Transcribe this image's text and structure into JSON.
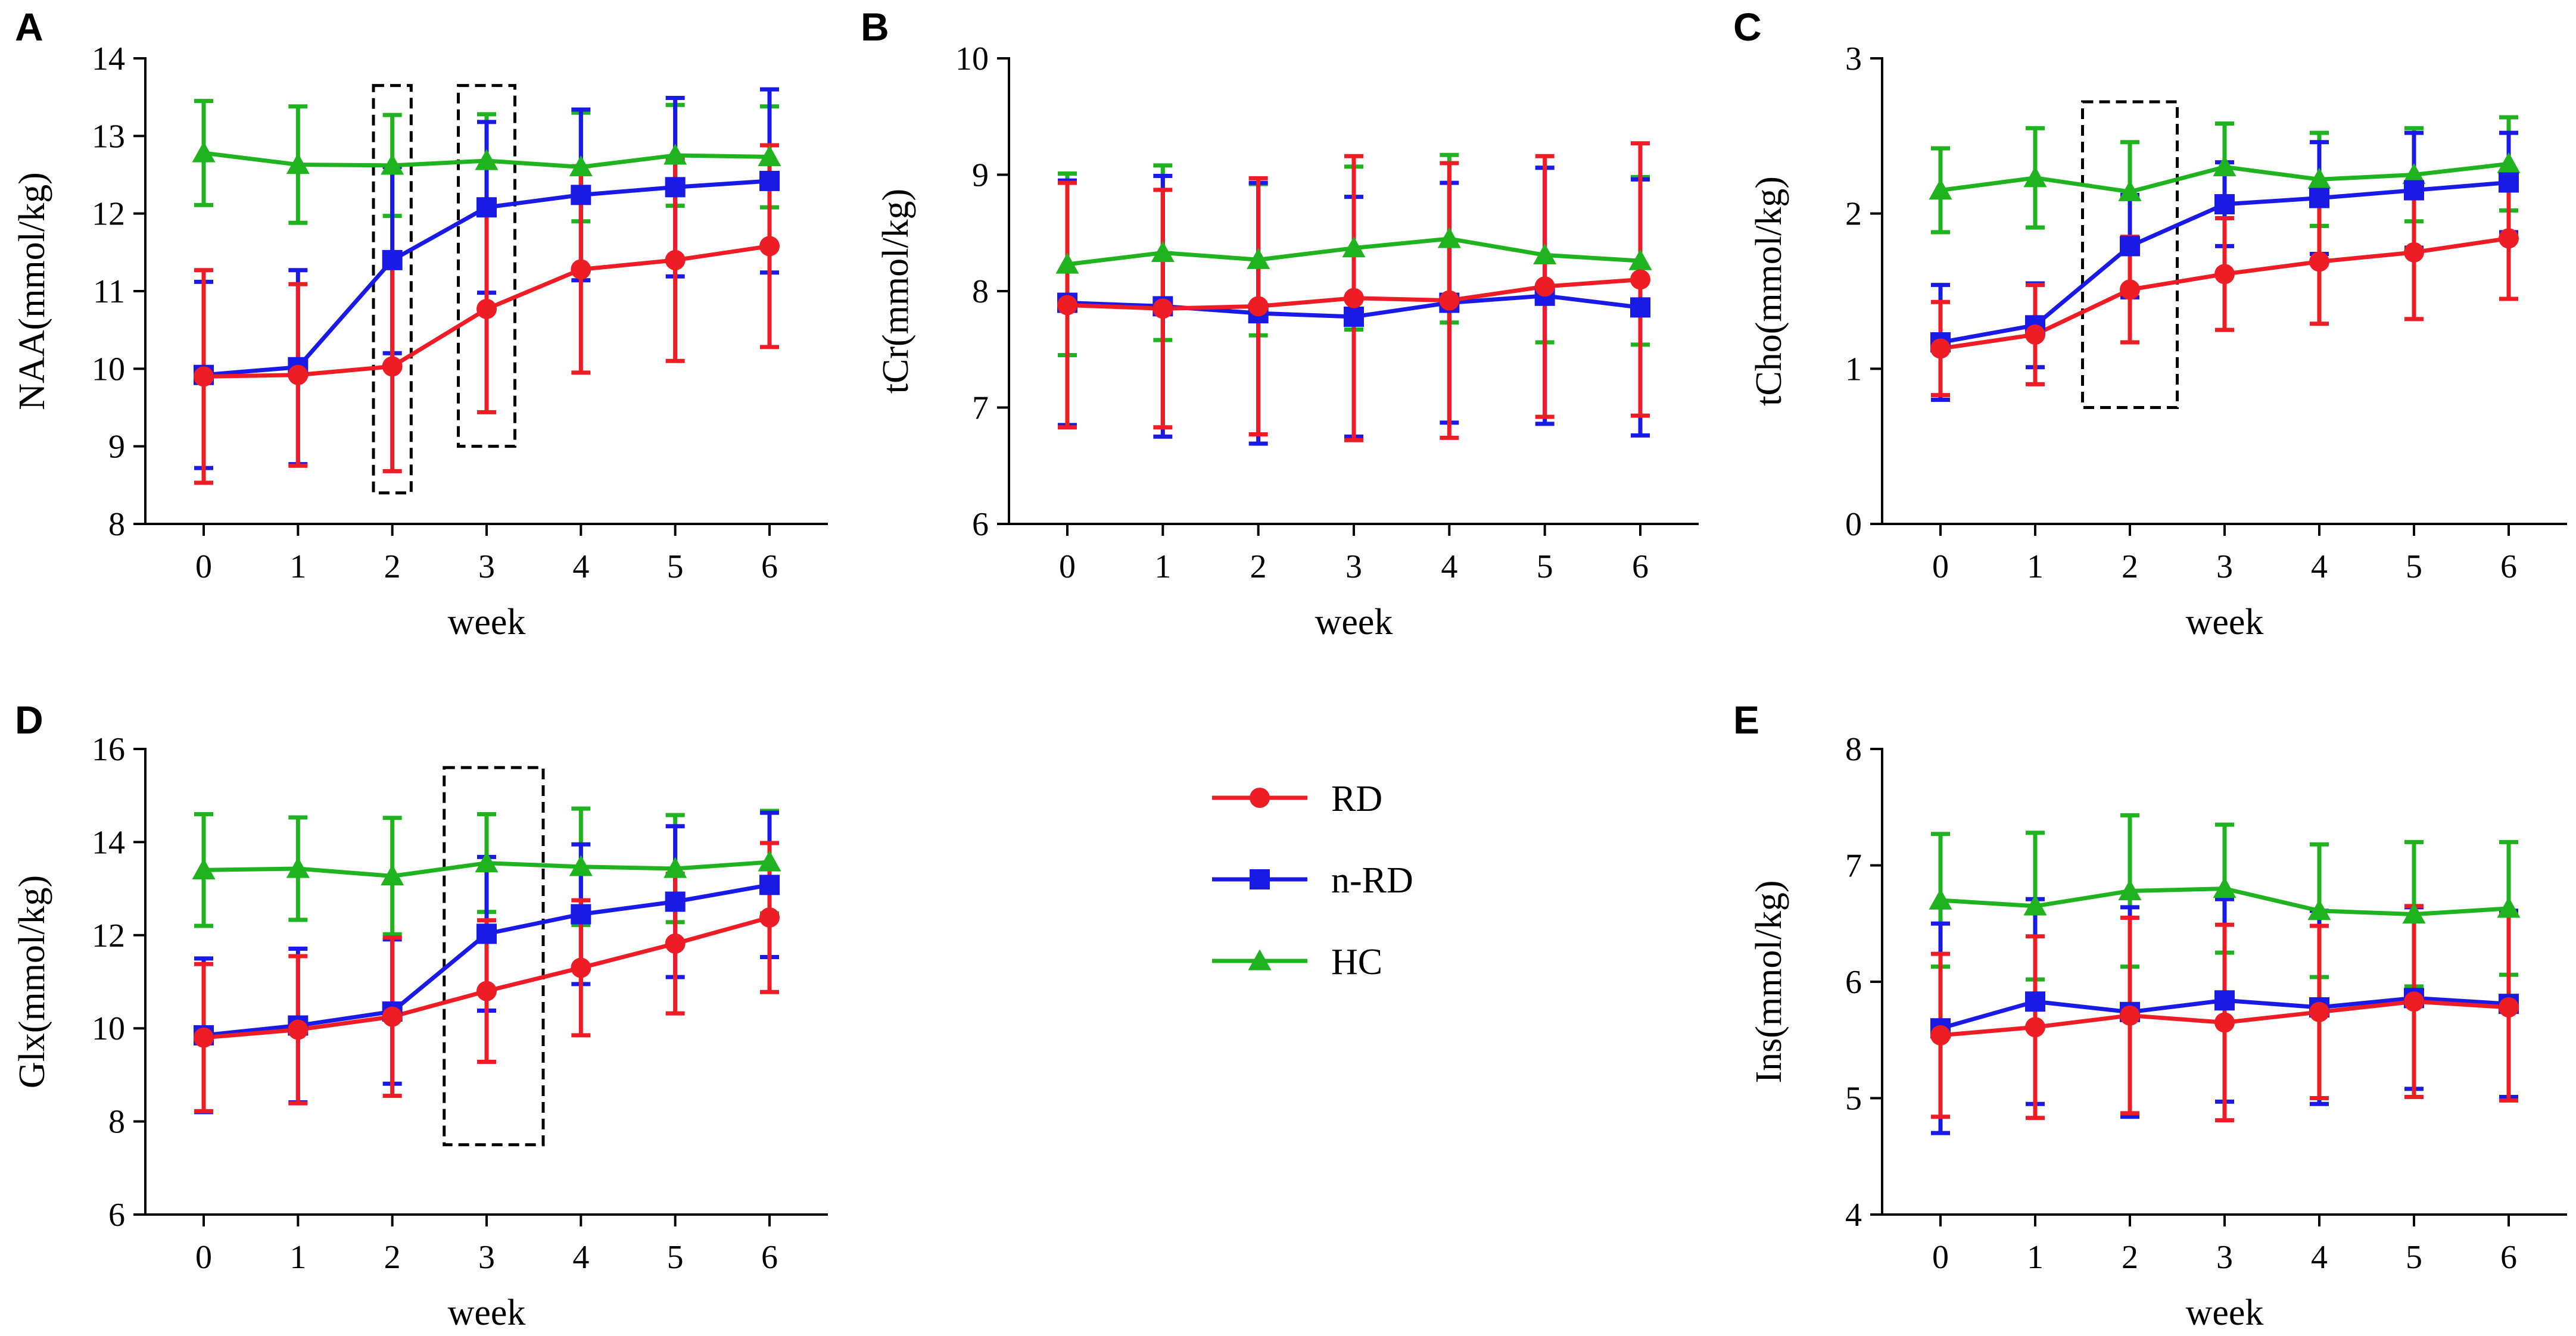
{
  "colors": {
    "RD": "#ee1c25",
    "n-RD": "#1a1ae6",
    "HC": "#1fb31f",
    "axis": "#000000"
  },
  "legend": [
    {
      "key": "RD",
      "label": "RD",
      "marker": "circle"
    },
    {
      "key": "n-RD",
      "label": "n-RD",
      "marker": "square"
    },
    {
      "key": "HC",
      "label": "HC",
      "marker": "triangle"
    }
  ],
  "chart_data": [
    {
      "type": "line",
      "panel": "A",
      "title": "",
      "xlabel": "week",
      "ylabel": "NAA(mmol/kg)",
      "x": [
        0,
        1,
        2,
        3,
        4,
        5,
        6
      ],
      "ylim": [
        8,
        14
      ],
      "yticks": [
        8,
        9,
        10,
        11,
        12,
        13,
        14
      ],
      "series": [
        {
          "name": "HC",
          "values": [
            12.78,
            12.63,
            12.62,
            12.68,
            12.6,
            12.75,
            12.73
          ],
          "errors": [
            0.67,
            0.75,
            0.65,
            0.6,
            0.7,
            0.65,
            0.65
          ]
        },
        {
          "name": "n-RD",
          "values": [
            9.92,
            10.02,
            11.4,
            12.08,
            12.24,
            12.34,
            12.42
          ],
          "errors": [
            1.2,
            1.25,
            1.2,
            1.1,
            1.1,
            1.15,
            1.18
          ]
        },
        {
          "name": "RD",
          "values": [
            9.9,
            9.92,
            10.03,
            10.77,
            11.28,
            11.4,
            11.58
          ],
          "errors": [
            1.37,
            1.17,
            1.35,
            1.33,
            1.33,
            1.3,
            1.3
          ]
        }
      ],
      "highlights": [
        {
          "x_from": 1.8,
          "x_to": 2.2,
          "y_from": 8.4,
          "y_to": 13.65
        },
        {
          "x_from": 2.7,
          "x_to": 3.3,
          "y_from": 9.0,
          "y_to": 13.65
        }
      ]
    },
    {
      "type": "line",
      "panel": "B",
      "title": "",
      "xlabel": "week",
      "ylabel": "tCr(mmol/kg)",
      "x": [
        0,
        1,
        2,
        3,
        4,
        5,
        6
      ],
      "ylim": [
        6,
        10
      ],
      "yticks": [
        6,
        7,
        8,
        9,
        10
      ],
      "series": [
        {
          "name": "HC",
          "values": [
            8.23,
            8.33,
            8.27,
            8.37,
            8.45,
            8.31,
            8.26
          ],
          "errors": [
            0.78,
            0.75,
            0.65,
            0.7,
            0.72,
            0.75,
            0.72
          ]
        },
        {
          "name": "n-RD",
          "values": [
            7.9,
            7.87,
            7.81,
            7.78,
            7.9,
            7.96,
            7.86
          ],
          "errors": [
            1.05,
            1.12,
            1.12,
            1.03,
            1.03,
            1.1,
            1.1
          ]
        },
        {
          "name": "RD",
          "values": [
            7.88,
            7.85,
            7.87,
            7.94,
            7.92,
            8.04,
            8.1
          ],
          "errors": [
            1.05,
            1.02,
            1.1,
            1.22,
            1.18,
            1.12,
            1.17
          ]
        }
      ],
      "highlights": []
    },
    {
      "type": "line",
      "panel": "C",
      "title": "",
      "xlabel": "week",
      "ylabel": "tCho(mmol/kg)",
      "x": [
        0,
        1,
        2,
        3,
        4,
        5,
        6
      ],
      "ylim": [
        0,
        3
      ],
      "yticks": [
        0,
        1,
        2,
        3
      ],
      "series": [
        {
          "name": "HC",
          "values": [
            2.15,
            2.23,
            2.14,
            2.3,
            2.22,
            2.25,
            2.32
          ],
          "errors": [
            0.27,
            0.32,
            0.32,
            0.28,
            0.3,
            0.3,
            0.3
          ]
        },
        {
          "name": "n-RD",
          "values": [
            1.17,
            1.28,
            1.79,
            2.06,
            2.1,
            2.15,
            2.2
          ],
          "errors": [
            0.37,
            0.27,
            0.33,
            0.27,
            0.36,
            0.37,
            0.32
          ]
        },
        {
          "name": "RD",
          "values": [
            1.13,
            1.22,
            1.51,
            1.61,
            1.69,
            1.75,
            1.84
          ],
          "errors": [
            0.3,
            0.32,
            0.34,
            0.36,
            0.4,
            0.43,
            0.39
          ]
        }
      ],
      "highlights": [
        {
          "x_from": 1.5,
          "x_to": 2.5,
          "y_from": 0.75,
          "y_to": 2.72
        }
      ]
    },
    {
      "type": "line",
      "panel": "D",
      "title": "",
      "xlabel": "week",
      "ylabel": "Glx(mmol/kg)",
      "x": [
        0,
        1,
        2,
        3,
        4,
        5,
        6
      ],
      "ylim": [
        6,
        16
      ],
      "yticks": [
        6,
        8,
        10,
        12,
        14,
        16
      ],
      "series": [
        {
          "name": "HC",
          "values": [
            13.4,
            13.43,
            13.27,
            13.55,
            13.47,
            13.43,
            13.57
          ],
          "errors": [
            1.2,
            1.1,
            1.25,
            1.05,
            1.25,
            1.15,
            1.1
          ]
        },
        {
          "name": "n-RD",
          "values": [
            9.85,
            10.06,
            10.36,
            12.03,
            12.45,
            12.72,
            13.08
          ],
          "errors": [
            1.65,
            1.65,
            1.55,
            1.65,
            1.5,
            1.62,
            1.55
          ]
        },
        {
          "name": "RD",
          "values": [
            9.8,
            9.97,
            10.25,
            10.8,
            11.3,
            11.82,
            12.38
          ],
          "errors": [
            1.58,
            1.58,
            1.7,
            1.52,
            1.45,
            1.5,
            1.6
          ]
        }
      ],
      "highlights": [
        {
          "x_from": 2.55,
          "x_to": 3.6,
          "y_from": 7.5,
          "y_to": 15.6
        }
      ]
    },
    {
      "type": "line",
      "panel": "E",
      "title": "",
      "xlabel": "week",
      "ylabel": "Ins(mmol/kg)",
      "x": [
        0,
        1,
        2,
        3,
        4,
        5,
        6
      ],
      "ylim": [
        4,
        8
      ],
      "yticks": [
        4,
        5,
        6,
        7,
        8
      ],
      "series": [
        {
          "name": "HC",
          "values": [
            6.7,
            6.65,
            6.78,
            6.8,
            6.61,
            6.58,
            6.63
          ],
          "errors": [
            0.57,
            0.63,
            0.65,
            0.55,
            0.57,
            0.62,
            0.57
          ]
        },
        {
          "name": "n-RD",
          "values": [
            5.6,
            5.83,
            5.74,
            5.84,
            5.78,
            5.86,
            5.81
          ],
          "errors": [
            0.9,
            0.88,
            0.9,
            0.87,
            0.83,
            0.78,
            0.8
          ]
        },
        {
          "name": "RD",
          "values": [
            5.54,
            5.61,
            5.71,
            5.65,
            5.74,
            5.83,
            5.78
          ],
          "errors": [
            0.7,
            0.78,
            0.84,
            0.84,
            0.74,
            0.82,
            0.8
          ]
        }
      ],
      "highlights": []
    }
  ]
}
